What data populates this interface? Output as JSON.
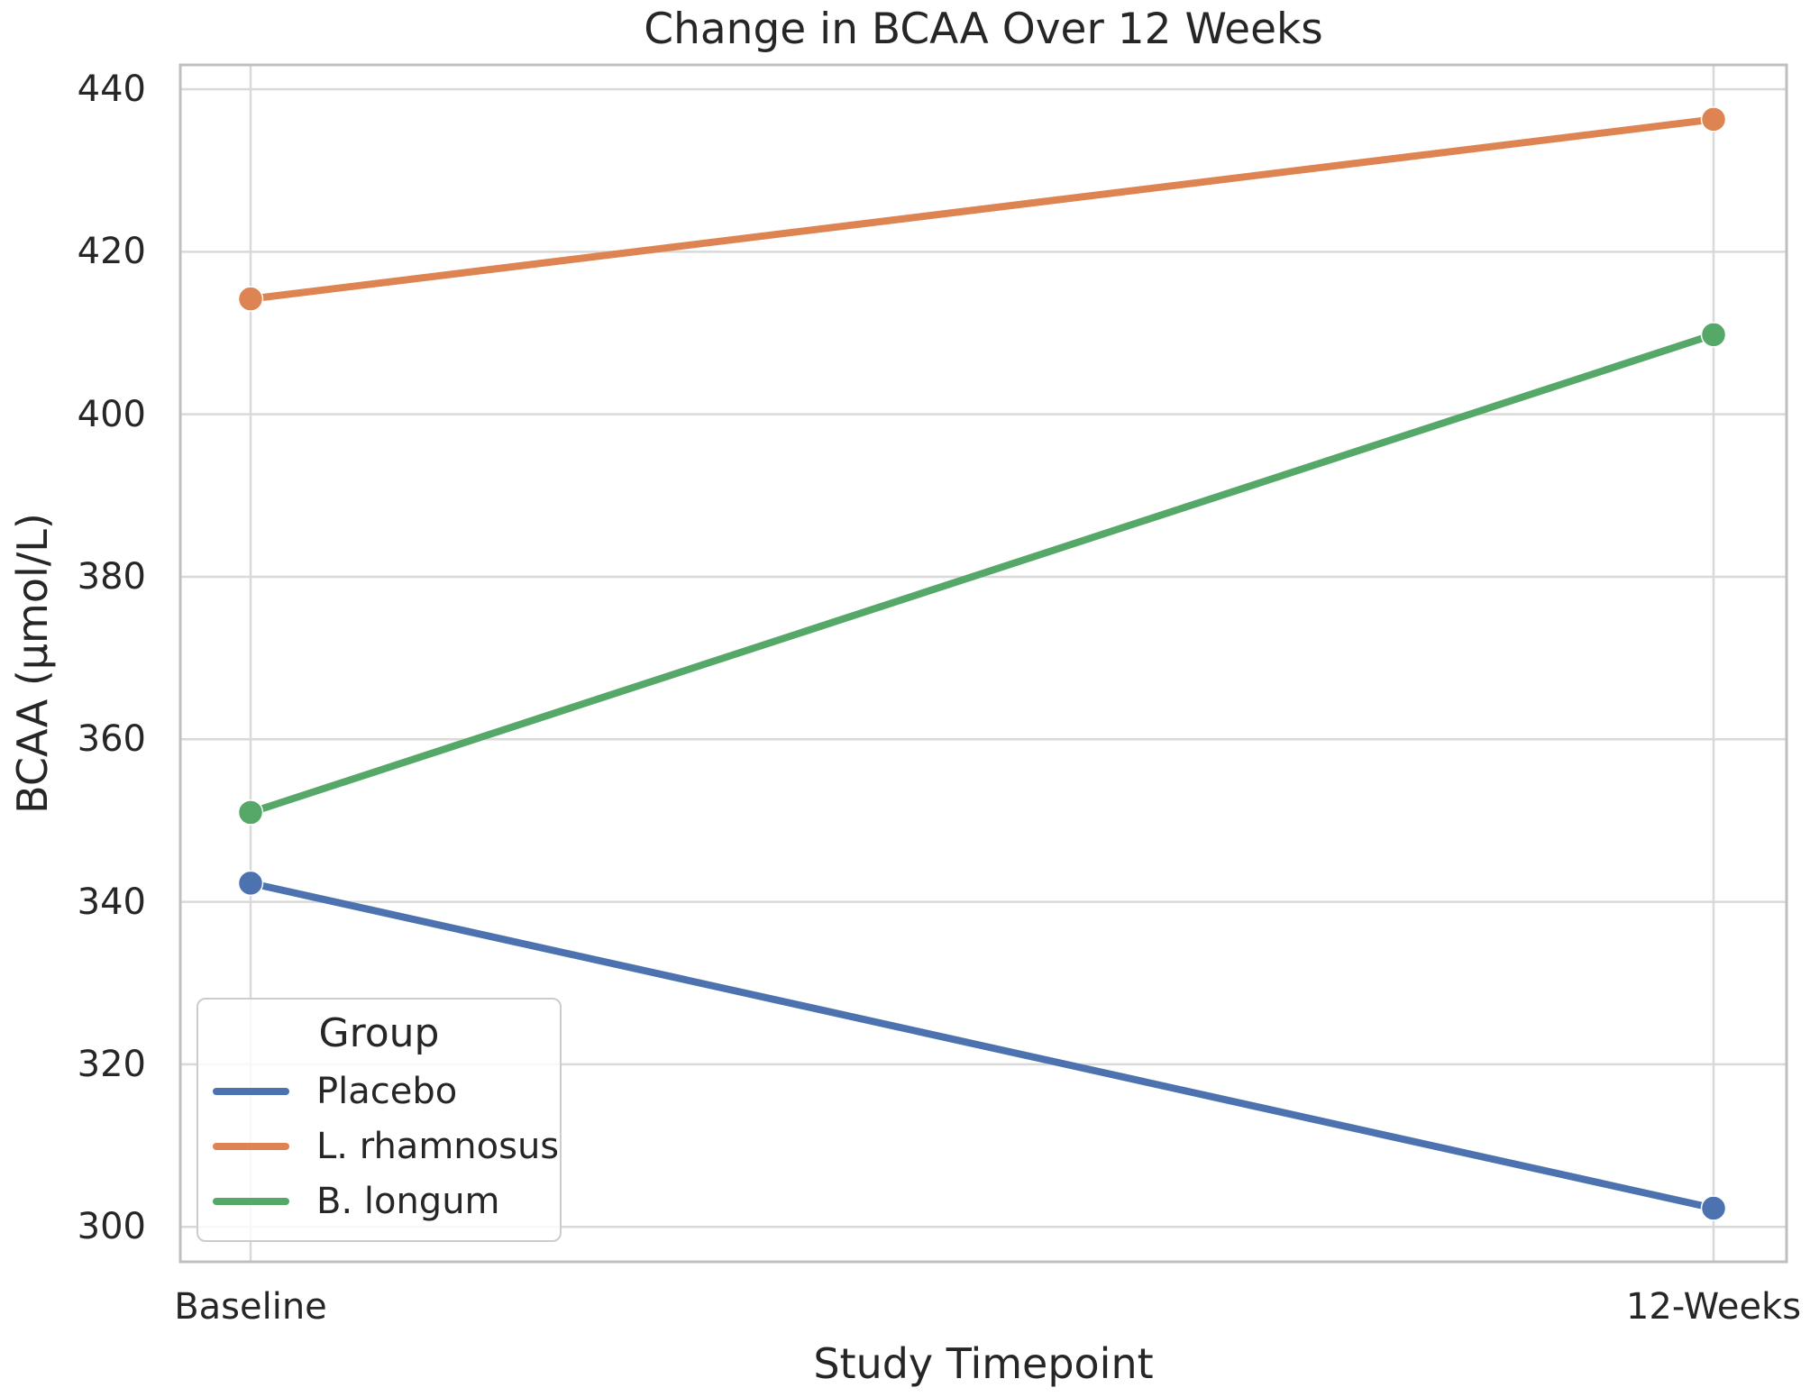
{
  "chart_data": {
    "type": "line",
    "title": "Change in BCAA Over 12 Weeks",
    "xlabel": "Study Timepoint",
    "ylabel": "BCAA (µmol/L)",
    "categories": [
      "Baseline",
      "12-Weeks"
    ],
    "series": [
      {
        "name": "Placebo",
        "color": "#4C72B0",
        "values": [
          342.3,
          302.3
        ]
      },
      {
        "name": "L. rhamnosus",
        "color": "#DD8452",
        "values": [
          414.2,
          436.3
        ]
      },
      {
        "name": "B. longum",
        "color": "#55A868",
        "values": [
          351.0,
          409.8
        ]
      }
    ],
    "legend": {
      "title": "Group",
      "position": "lower-left"
    },
    "y_ticks": [
      300,
      320,
      340,
      360,
      380,
      400,
      420,
      440
    ],
    "ylim": [
      295.7,
      443.0
    ],
    "grid": true,
    "style": {
      "background": "#ffffff",
      "grid_color": "#d9d9d9",
      "spine_color": "#bfbfbf",
      "text_color": "#262626",
      "marker": "circle"
    }
  }
}
